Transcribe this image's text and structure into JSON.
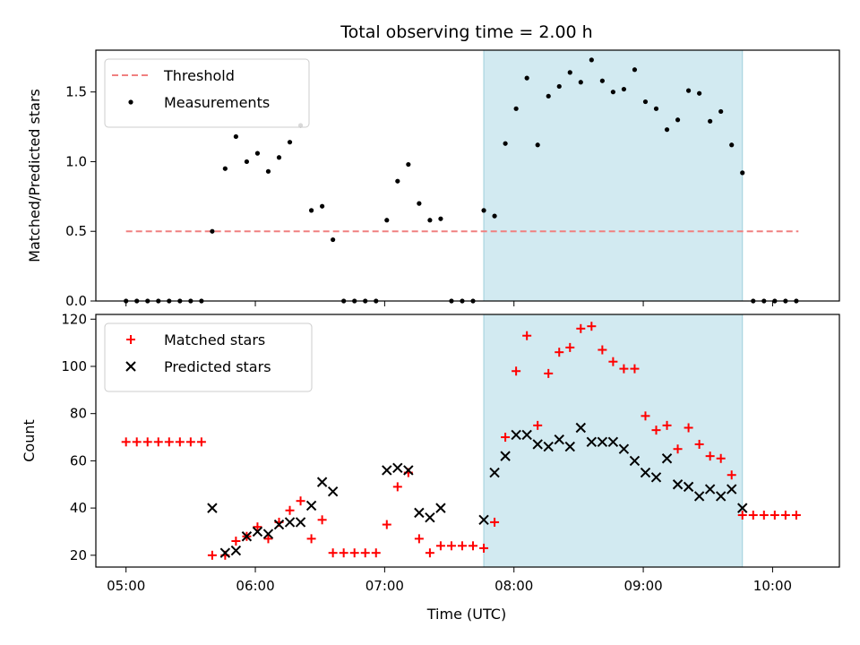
{
  "chart_data": {
    "title": "Total observing time = 2.00 h",
    "xlabel": "Time (UTC)",
    "x_ticks": [
      "05:00",
      "06:00",
      "07:00",
      "08:00",
      "09:00",
      "10:00"
    ],
    "shaded_span": {
      "start": "07:46",
      "end": "09:46",
      "color": "#add8e6"
    },
    "panels": [
      {
        "type": "scatter",
        "ylabel": "Matched/Predicted stars",
        "ylim": [
          0,
          1.8
        ],
        "y_ticks": [
          "0.0",
          "0.5",
          "1.0",
          "1.5"
        ],
        "legend_position": "upper-left",
        "threshold": {
          "name": "Threshold",
          "value": 0.5,
          "x_start": "05:00",
          "x_end": "10:12",
          "color": "#f08080"
        },
        "series": [
          {
            "name": "Measurements",
            "color": "#000000",
            "marker": "dot",
            "points": [
              [
                "05:00",
                0
              ],
              [
                "05:05",
                0
              ],
              [
                "05:10",
                0
              ],
              [
                "05:15",
                0
              ],
              [
                "05:20",
                0
              ],
              [
                "05:25",
                0
              ],
              [
                "05:30",
                0
              ],
              [
                "05:35",
                0
              ],
              [
                "05:40",
                0.5
              ],
              [
                "05:46",
                0.95
              ],
              [
                "05:51",
                1.18
              ],
              [
                "05:56",
                1.0
              ],
              [
                "06:01",
                1.06
              ],
              [
                "06:06",
                0.93
              ],
              [
                "06:11",
                1.03
              ],
              [
                "06:16",
                1.14
              ],
              [
                "06:21",
                1.26
              ],
              [
                "06:26",
                0.65
              ],
              [
                "06:31",
                0.68
              ],
              [
                "06:36",
                0.44
              ],
              [
                "06:41",
                0
              ],
              [
                "06:46",
                0
              ],
              [
                "06:51",
                0
              ],
              [
                "06:56",
                0
              ],
              [
                "07:01",
                0.58
              ],
              [
                "07:06",
                0.86
              ],
              [
                "07:11",
                0.98
              ],
              [
                "07:16",
                0.7
              ],
              [
                "07:21",
                0.58
              ],
              [
                "07:26",
                0.59
              ],
              [
                "07:31",
                0
              ],
              [
                "07:36",
                0
              ],
              [
                "07:41",
                0
              ],
              [
                "07:46",
                0.65
              ],
              [
                "07:51",
                0.61
              ],
              [
                "07:56",
                1.13
              ],
              [
                "08:01",
                1.38
              ],
              [
                "08:06",
                1.6
              ],
              [
                "08:11",
                1.12
              ],
              [
                "08:16",
                1.47
              ],
              [
                "08:21",
                1.54
              ],
              [
                "08:26",
                1.64
              ],
              [
                "08:31",
                1.57
              ],
              [
                "08:36",
                1.73
              ],
              [
                "08:41",
                1.58
              ],
              [
                "08:46",
                1.5
              ],
              [
                "08:51",
                1.52
              ],
              [
                "08:56",
                1.66
              ],
              [
                "09:01",
                1.43
              ],
              [
                "09:06",
                1.38
              ],
              [
                "09:11",
                1.23
              ],
              [
                "09:16",
                1.3
              ],
              [
                "09:21",
                1.51
              ],
              [
                "09:26",
                1.49
              ],
              [
                "09:31",
                1.29
              ],
              [
                "09:36",
                1.36
              ],
              [
                "09:41",
                1.12
              ],
              [
                "09:46",
                0.92
              ],
              [
                "09:51",
                0
              ],
              [
                "09:56",
                0
              ],
              [
                "10:01",
                0
              ],
              [
                "10:06",
                0
              ],
              [
                "10:11",
                0
              ]
            ]
          }
        ]
      },
      {
        "type": "scatter",
        "ylabel": "Count",
        "ylim": [
          15,
          122
        ],
        "y_ticks": [
          "20",
          "40",
          "60",
          "80",
          "100",
          "120"
        ],
        "legend_position": "upper-left",
        "series": [
          {
            "name": "Matched stars",
            "color": "#ff0000",
            "marker": "plus",
            "points": [
              [
                "05:00",
                68
              ],
              [
                "05:05",
                68
              ],
              [
                "05:10",
                68
              ],
              [
                "05:15",
                68
              ],
              [
                "05:20",
                68
              ],
              [
                "05:25",
                68
              ],
              [
                "05:30",
                68
              ],
              [
                "05:35",
                68
              ],
              [
                "05:40",
                20
              ],
              [
                "05:46",
                20
              ],
              [
                "05:51",
                26
              ],
              [
                "05:56",
                28
              ],
              [
                "06:01",
                32
              ],
              [
                "06:06",
                27
              ],
              [
                "06:11",
                34
              ],
              [
                "06:16",
                39
              ],
              [
                "06:21",
                43
              ],
              [
                "06:26",
                27
              ],
              [
                "06:31",
                35
              ],
              [
                "06:36",
                21
              ],
              [
                "06:41",
                21
              ],
              [
                "06:46",
                21
              ],
              [
                "06:51",
                21
              ],
              [
                "06:56",
                21
              ],
              [
                "07:01",
                33
              ],
              [
                "07:06",
                49
              ],
              [
                "07:11",
                55
              ],
              [
                "07:16",
                27
              ],
              [
                "07:21",
                21
              ],
              [
                "07:26",
                24
              ],
              [
                "07:31",
                24
              ],
              [
                "07:36",
                24
              ],
              [
                "07:41",
                24
              ],
              [
                "07:46",
                23
              ],
              [
                "07:51",
                34
              ],
              [
                "07:56",
                70
              ],
              [
                "08:01",
                98
              ],
              [
                "08:06",
                113
              ],
              [
                "08:11",
                75
              ],
              [
                "08:16",
                97
              ],
              [
                "08:21",
                106
              ],
              [
                "08:26",
                108
              ],
              [
                "08:31",
                116
              ],
              [
                "08:36",
                117
              ],
              [
                "08:41",
                107
              ],
              [
                "08:46",
                102
              ],
              [
                "08:51",
                99
              ],
              [
                "08:56",
                99
              ],
              [
                "09:01",
                79
              ],
              [
                "09:06",
                73
              ],
              [
                "09:11",
                75
              ],
              [
                "09:16",
                65
              ],
              [
                "09:21",
                74
              ],
              [
                "09:26",
                67
              ],
              [
                "09:31",
                62
              ],
              [
                "09:36",
                61
              ],
              [
                "09:41",
                54
              ],
              [
                "09:46",
                37
              ],
              [
                "09:51",
                37
              ],
              [
                "09:56",
                37
              ],
              [
                "10:01",
                37
              ],
              [
                "10:06",
                37
              ],
              [
                "10:11",
                37
              ]
            ]
          },
          {
            "name": "Predicted stars",
            "color": "#000000",
            "marker": "x",
            "points": [
              [
                "05:40",
                40
              ],
              [
                "05:46",
                21
              ],
              [
                "05:51",
                22
              ],
              [
                "05:56",
                28
              ],
              [
                "06:01",
                30
              ],
              [
                "06:06",
                29
              ],
              [
                "06:11",
                33
              ],
              [
                "06:16",
                34
              ],
              [
                "06:21",
                34
              ],
              [
                "06:26",
                41
              ],
              [
                "06:31",
                51
              ],
              [
                "06:36",
                47
              ],
              [
                "07:01",
                56
              ],
              [
                "07:06",
                57
              ],
              [
                "07:11",
                56
              ],
              [
                "07:16",
                38
              ],
              [
                "07:21",
                36
              ],
              [
                "07:26",
                40
              ],
              [
                "07:46",
                35
              ],
              [
                "07:51",
                55
              ],
              [
                "07:56",
                62
              ],
              [
                "08:01",
                71
              ],
              [
                "08:06",
                71
              ],
              [
                "08:11",
                67
              ],
              [
                "08:16",
                66
              ],
              [
                "08:21",
                69
              ],
              [
                "08:26",
                66
              ],
              [
                "08:31",
                74
              ],
              [
                "08:36",
                68
              ],
              [
                "08:41",
                68
              ],
              [
                "08:46",
                68
              ],
              [
                "08:51",
                65
              ],
              [
                "08:56",
                60
              ],
              [
                "09:01",
                55
              ],
              [
                "09:06",
                53
              ],
              [
                "09:11",
                61
              ],
              [
                "09:16",
                50
              ],
              [
                "09:21",
                49
              ],
              [
                "09:26",
                45
              ],
              [
                "09:31",
                48
              ],
              [
                "09:36",
                45
              ],
              [
                "09:41",
                48
              ],
              [
                "09:46",
                40
              ]
            ]
          }
        ]
      }
    ]
  }
}
